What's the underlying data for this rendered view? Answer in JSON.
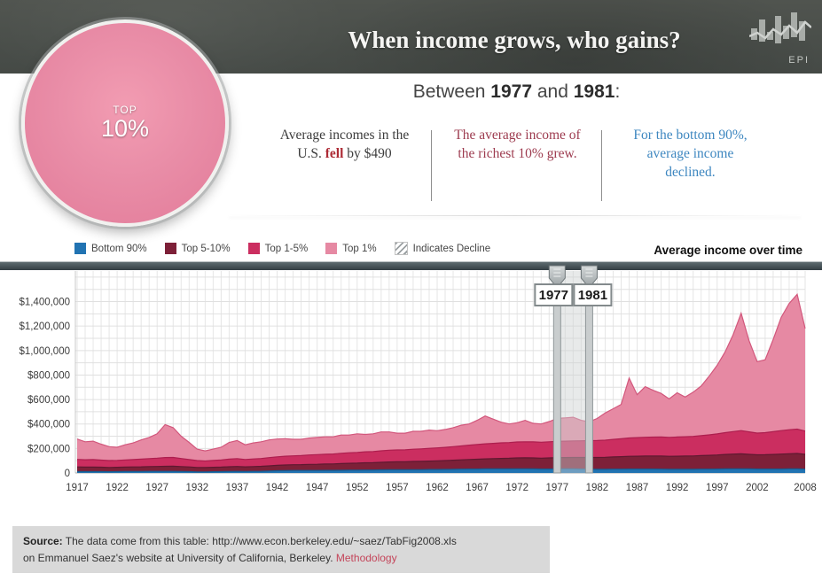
{
  "header": {
    "title": "When income grows, who gains?",
    "logo_text": "EPI"
  },
  "pie": {
    "label_top": "TOP",
    "label_pct": "10%"
  },
  "subheader": {
    "prefix": "Between ",
    "year_start": "1977",
    "mid": " and ",
    "year_end": "1981",
    "suffix": ":"
  },
  "columns": {
    "col1": {
      "before": "Average incomes in the U.S. ",
      "em": "fell",
      "after": " by $490"
    },
    "col2": {
      "text": "The average income of the richest 10% grew."
    },
    "col3": {
      "text": "For the bottom 90%, average income declined."
    }
  },
  "legend": {
    "items": [
      {
        "label": "Bottom 90%",
        "color": "#2173b2"
      },
      {
        "label": "Top 5-10%",
        "color": "#7d2038"
      },
      {
        "label": "Top 1-5%",
        "color": "#cb2e60"
      },
      {
        "label": "Top 1%",
        "color": "#e689a3"
      }
    ],
    "decline_label": "Indicates Decline"
  },
  "chart_title": "Average income over time",
  "chart_data": {
    "type": "area",
    "stacked": true,
    "title": "Average income over time",
    "x_start": 1917,
    "x_end": 2008,
    "x_tick_labels": [
      "1917",
      "1922",
      "1927",
      "1932",
      "1937",
      "1942",
      "1947",
      "1952",
      "1957",
      "1962",
      "1967",
      "1972",
      "1977",
      "1982",
      "1987",
      "1992",
      "1997",
      "2002",
      "2008"
    ],
    "y_tick_labels": [
      "$1,400,000",
      "$1,200,000",
      "$1,000,000",
      "$800,000",
      "$600,000",
      "$400,000",
      "$200,000",
      "0"
    ],
    "ylim": [
      0,
      1650000
    ],
    "gridline_interval": 100000,
    "grid": true,
    "highlight_range": {
      "start": 1977,
      "end": 1981,
      "labels": [
        "1977",
        "1981"
      ]
    },
    "units": "USD, average income per year",
    "series": [
      {
        "name": "Bottom 90%",
        "color": "#2173b2",
        "edge": "#185a8c",
        "values": [
          11000,
          11000,
          11000,
          11000,
          10000,
          11000,
          12000,
          12000,
          12000,
          13000,
          13000,
          13000,
          13000,
          12000,
          11000,
          9000,
          9000,
          10000,
          11000,
          12000,
          13000,
          12000,
          13000,
          14000,
          16000,
          18000,
          19000,
          20000,
          20000,
          20000,
          20000,
          21000,
          21000,
          22000,
          23000,
          23000,
          24000,
          24000,
          25000,
          26000,
          26000,
          26000,
          27000,
          27000,
          28000,
          28000,
          29000,
          30000,
          31000,
          32000,
          32000,
          33000,
          33000,
          33000,
          33000,
          34000,
          34000,
          33000,
          32000,
          32000,
          33000,
          33000,
          33000,
          32000,
          31000,
          30000,
          30000,
          31000,
          31000,
          32000,
          32000,
          32000,
          32000,
          31000,
          30000,
          30000,
          30000,
          30000,
          31000,
          31000,
          32000,
          33000,
          34000,
          34000,
          33000,
          32000,
          32000,
          32000,
          32000,
          33000,
          33000,
          31000
        ]
      },
      {
        "name": "Top 5-10%",
        "color": "#7d2038",
        "edge": "#5f1830",
        "values": [
          38000,
          37000,
          37000,
          36000,
          35000,
          35000,
          36000,
          37000,
          38000,
          39000,
          40000,
          41000,
          42000,
          40000,
          38000,
          36000,
          35000,
          36000,
          37000,
          39000,
          40000,
          38000,
          39000,
          40000,
          42000,
          44000,
          46000,
          47000,
          48000,
          50000,
          51000,
          52000,
          53000,
          55000,
          56000,
          57000,
          59000,
          60000,
          62000,
          64000,
          65000,
          65000,
          67000,
          68000,
          69000,
          71000,
          72000,
          74000,
          76000,
          78000,
          80000,
          82000,
          84000,
          86000,
          87000,
          89000,
          90000,
          90000,
          89000,
          91000,
          92000,
          93000,
          94000,
          95000,
          96000,
          97000,
          98000,
          100000,
          102000,
          104000,
          105000,
          106000,
          106000,
          107000,
          106000,
          107000,
          108000,
          109000,
          111000,
          113000,
          115000,
          118000,
          120000,
          122000,
          119000,
          116000,
          117000,
          119000,
          122000,
          124000,
          126000,
          121000
        ]
      },
      {
        "name": "Top 1-5%",
        "color": "#cb2e60",
        "edge": "#ad1e4e",
        "values": [
          62000,
          60000,
          61000,
          58000,
          56000,
          57000,
          58000,
          60000,
          63000,
          65000,
          68000,
          72000,
          72000,
          66000,
          60000,
          56000,
          54000,
          56000,
          58000,
          62000,
          64000,
          60000,
          62000,
          64000,
          67000,
          70000,
          72000,
          73000,
          74000,
          77000,
          79000,
          80000,
          81000,
          84000,
          86000,
          88000,
          90000,
          91000,
          94000,
          96000,
          97000,
          98000,
          100000,
          102000,
          104000,
          106000,
          108000,
          111000,
          114000,
          117000,
          120000,
          123000,
          125000,
          127000,
          128000,
          130000,
          131000,
          131000,
          130000,
          132000,
          133000,
          134000,
          135000,
          136000,
          137000,
          138000,
          140000,
          143000,
          146000,
          150000,
          152000,
          154000,
          155000,
          156000,
          155000,
          157000,
          158000,
          160000,
          163000,
          167000,
          172000,
          178000,
          184000,
          190000,
          184000,
          178000,
          180000,
          186000,
          192000,
          196000,
          199000,
          190000
        ]
      },
      {
        "name": "Top 1%",
        "color": "#e689a3",
        "edge": "#d2577c",
        "values": [
          166000,
          147000,
          151000,
          130000,
          114000,
          107000,
          124000,
          136000,
          157000,
          173000,
          199000,
          269000,
          243000,
          182000,
          141000,
          94000,
          82000,
          93000,
          104000,
          137000,
          148000,
          120000,
          131000,
          137000,
          145000,
          145000,
          143000,
          135000,
          133000,
          138000,
          140000,
          142000,
          140000,
          149000,
          145000,
          152000,
          142000,
          145000,
          154000,
          149000,
          137000,
          136000,
          146000,
          143000,
          149000,
          140000,
          146000,
          155000,
          169000,
          173000,
          198000,
          227000,
          198000,
          169000,
          152000,
          157000,
          175000,
          151000,
          149000,
          165000,
          187000,
          190000,
          193000,
          167000,
          154000,
          180000,
          222000,
          251000,
          281000,
          489000,
          351000,
          413000,
          382000,
          356000,
          314000,
          361000,
          324000,
          361000,
          405000,
          479000,
          561000,
          661000,
          792000,
          959000,
          744000,
          584000,
          596000,
          753000,
          924000,
          1032000,
          1102000,
          838000
        ]
      }
    ]
  },
  "source": {
    "label": "Source:",
    "line1": " The data come from this table: http://www.econ.berkeley.edu/~saez/TabFig2008.xls",
    "line2": "on Emmanuel Saez's website at University of California, Berkeley. ",
    "link": "Methodology"
  }
}
